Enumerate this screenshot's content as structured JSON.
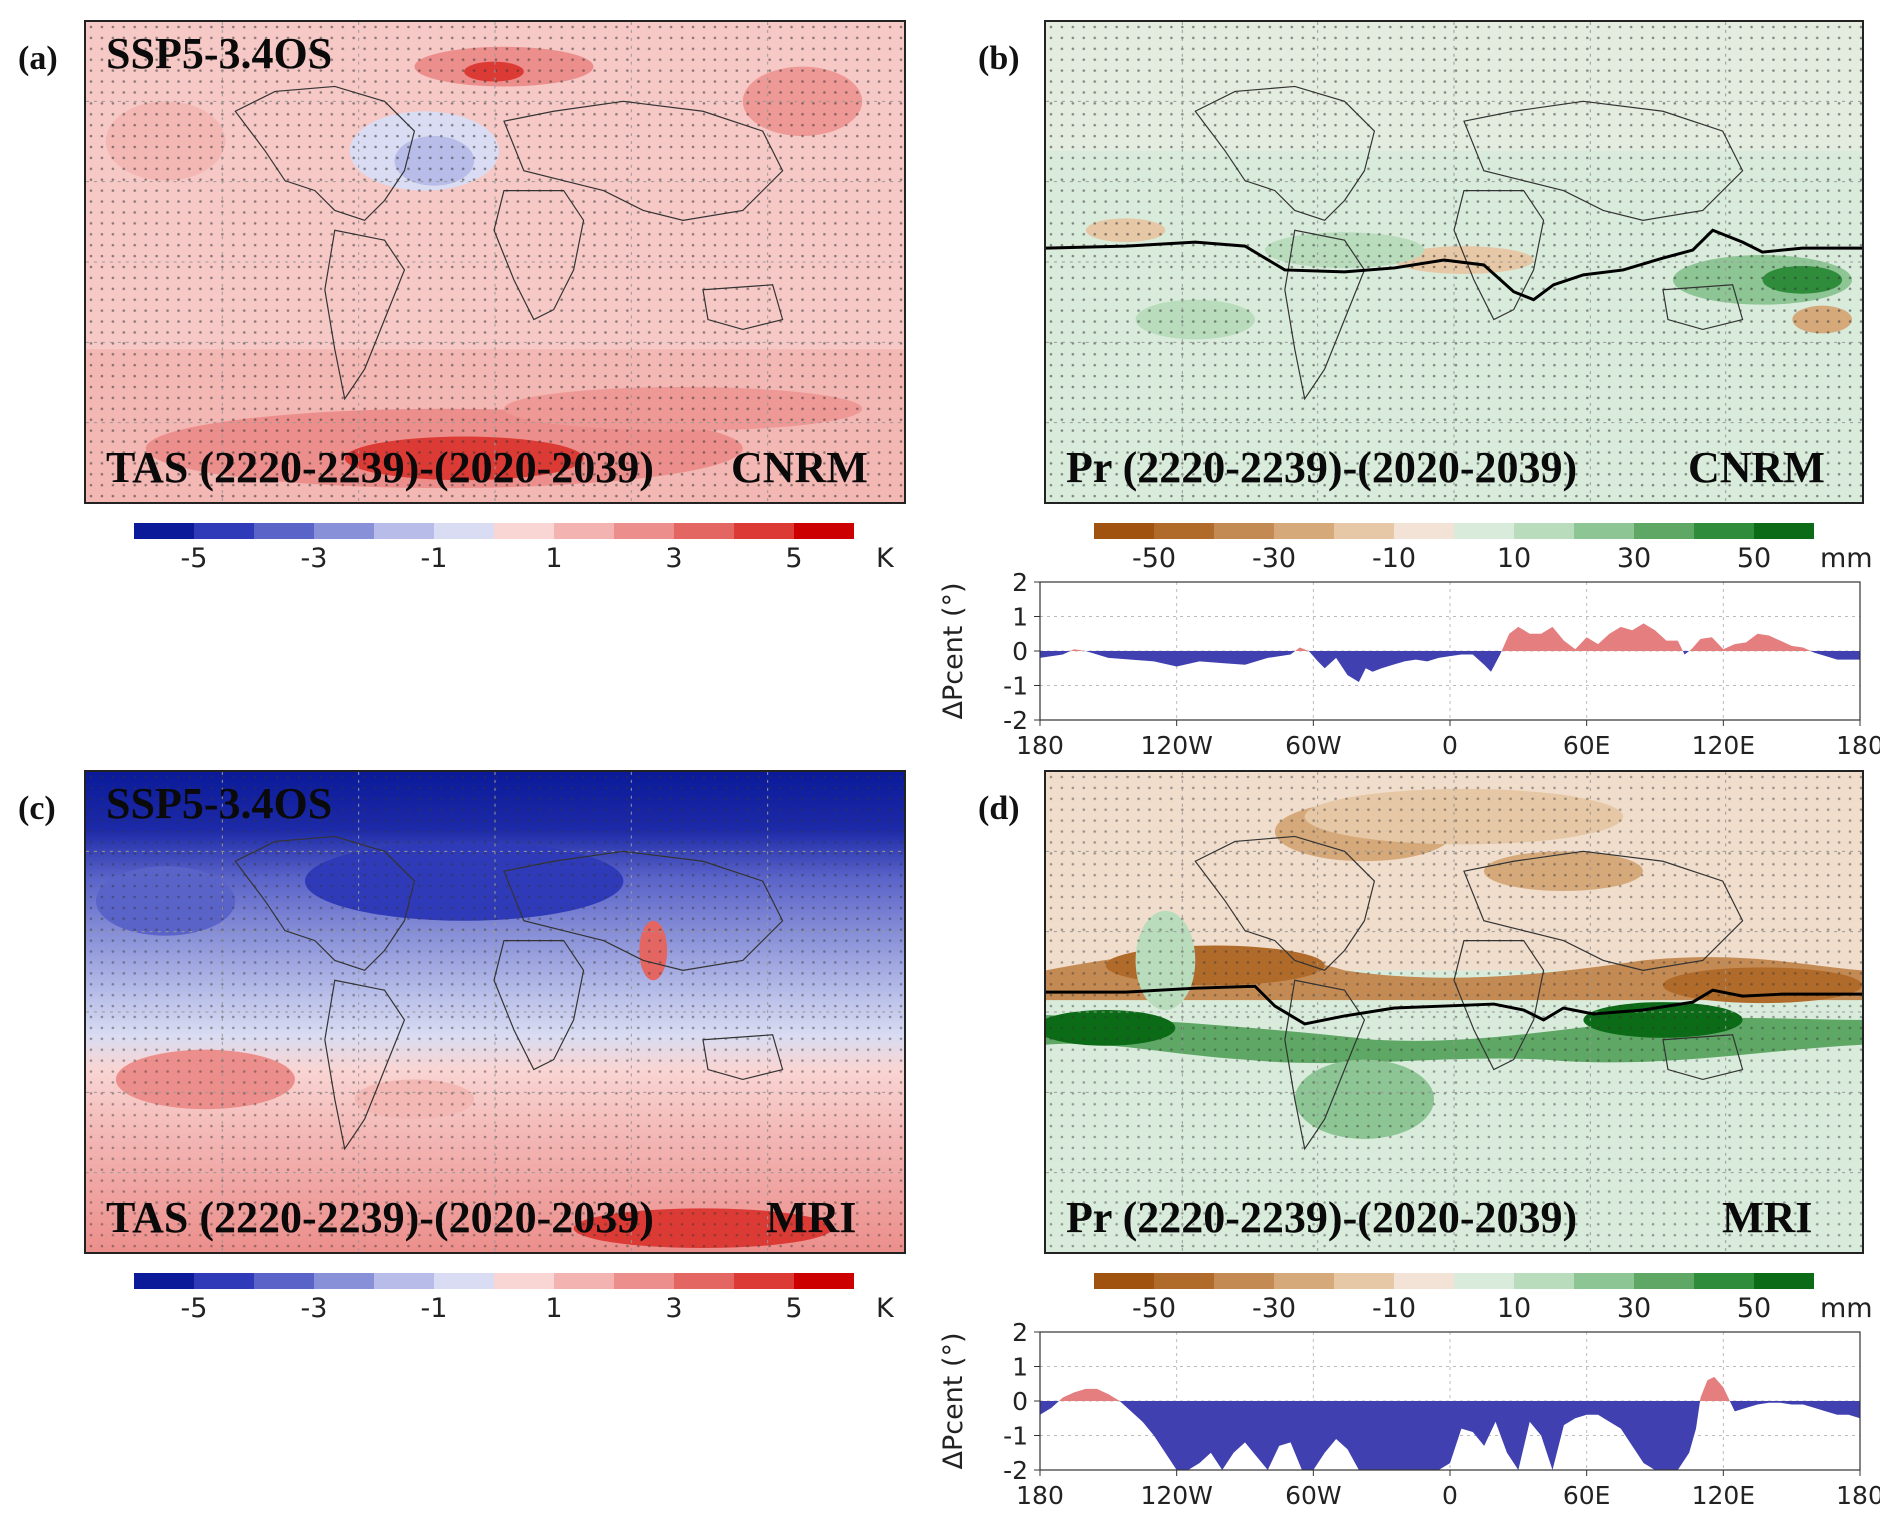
{
  "panels": {
    "a": {
      "letter": "(a)",
      "scenario": "SSP5-3.4OS",
      "label_left": "TAS (2220-2239)-(2020-2039)",
      "label_right": "CNRM"
    },
    "b": {
      "letter": "(b)",
      "label_left": "Pr (2220-2239)-(2020-2039)",
      "label_right": "CNRM"
    },
    "c": {
      "letter": "(c)",
      "scenario": "SSP5-3.4OS",
      "label_left": "TAS (2220-2239)-(2020-2039)",
      "label_right": "MRI"
    },
    "d": {
      "letter": "(d)",
      "label_left": "Pr (2220-2239)-(2020-2039)",
      "label_right": "MRI"
    }
  },
  "colorbars": {
    "tas": {
      "colors": [
        "#0a1a99",
        "#2f3ab8",
        "#5a63c8",
        "#8890d8",
        "#b7bde8",
        "#d9dcf2",
        "#f9d5d3",
        "#f2b3b1",
        "#ec8f8c",
        "#e46662",
        "#dc3a35",
        "#cc0000"
      ],
      "ticks": [
        "-5",
        "-3",
        "-1",
        "1",
        "3",
        "5"
      ],
      "unit": "K"
    },
    "pr": {
      "colors": [
        "#a0520f",
        "#b06b2b",
        "#c48a53",
        "#d6a97b",
        "#e6c8a6",
        "#f2e3d6",
        "#d9ecdc",
        "#b8dcbc",
        "#8dc594",
        "#5ea765",
        "#2f8c3a",
        "#0b6b16"
      ],
      "ticks": [
        "-50",
        "-30",
        "-10",
        "10",
        "30",
        "50"
      ],
      "unit": "mm"
    }
  },
  "chart_data": [
    {
      "type": "area",
      "panel": "b-lower",
      "ylabel": "ΔPcent (°)",
      "ylim": [
        -2,
        2
      ],
      "yticks": [
        "2",
        "1",
        "0",
        "-1",
        "-2"
      ],
      "xlim": [
        -180,
        180
      ],
      "xticks": [
        "180",
        "120W",
        "60W",
        "0",
        "60E",
        "120E",
        "180"
      ],
      "positive_color": "#e57f7f",
      "negative_color": "#4040b0",
      "x": [
        -180,
        -170,
        -165,
        -160,
        -150,
        -140,
        -130,
        -120,
        -110,
        -100,
        -90,
        -80,
        -70,
        -66,
        -62,
        -58,
        -55,
        -50,
        -45,
        -40,
        -37,
        -34,
        -30,
        -25,
        -20,
        -15,
        -10,
        -5,
        0,
        5,
        10,
        15,
        18,
        22,
        26,
        30,
        35,
        40,
        45,
        50,
        55,
        60,
        65,
        70,
        75,
        80,
        85,
        90,
        95,
        100,
        103,
        106,
        110,
        115,
        120,
        125,
        130,
        135,
        140,
        145,
        150,
        155,
        160,
        165,
        170,
        175,
        180
      ],
      "y": [
        -0.2,
        -0.1,
        0.05,
        0.0,
        -0.2,
        -0.25,
        -0.3,
        -0.45,
        -0.3,
        -0.35,
        -0.4,
        -0.2,
        -0.1,
        0.1,
        0.0,
        -0.3,
        -0.5,
        -0.2,
        -0.7,
        -0.9,
        -0.5,
        -0.6,
        -0.5,
        -0.4,
        -0.3,
        -0.25,
        -0.3,
        -0.2,
        -0.15,
        -0.1,
        -0.1,
        -0.4,
        -0.6,
        -0.1,
        0.5,
        0.7,
        0.5,
        0.5,
        0.7,
        0.3,
        0.05,
        0.4,
        0.2,
        0.5,
        0.7,
        0.6,
        0.8,
        0.6,
        0.3,
        0.3,
        -0.1,
        0.05,
        0.35,
        0.4,
        0.05,
        0.2,
        0.25,
        0.5,
        0.45,
        0.3,
        0.15,
        0.1,
        -0.05,
        -0.15,
        -0.25,
        -0.25,
        -0.25
      ]
    },
    {
      "type": "area",
      "panel": "d-lower",
      "ylabel": "ΔPcent (°)",
      "ylim": [
        -2,
        2
      ],
      "yticks": [
        "2",
        "1",
        "0",
        "-1",
        "-2"
      ],
      "xlim": [
        -180,
        180
      ],
      "xticks": [
        "180",
        "120W",
        "60W",
        "0",
        "60E",
        "120E",
        "180"
      ],
      "positive_color": "#e57f7f",
      "negative_color": "#4040b0",
      "x": [
        -180,
        -175,
        -170,
        -165,
        -160,
        -155,
        -150,
        -145,
        -140,
        -135,
        -130,
        -125,
        -120,
        -115,
        -110,
        -105,
        -100,
        -95,
        -90,
        -85,
        -80,
        -75,
        -70,
        -65,
        -60,
        -55,
        -50,
        -45,
        -40,
        -35,
        -30,
        -25,
        -20,
        -15,
        -10,
        -5,
        0,
        5,
        10,
        15,
        20,
        25,
        30,
        35,
        40,
        45,
        50,
        55,
        60,
        65,
        70,
        75,
        80,
        85,
        90,
        95,
        100,
        105,
        108,
        110,
        113,
        116,
        120,
        125,
        130,
        135,
        140,
        145,
        150,
        155,
        160,
        165,
        170,
        175,
        180
      ],
      "y": [
        -0.4,
        -0.2,
        0.1,
        0.25,
        0.35,
        0.35,
        0.2,
        0.0,
        -0.3,
        -0.6,
        -1.0,
        -1.5,
        -2.0,
        -2.0,
        -1.8,
        -1.5,
        -2.0,
        -1.5,
        -1.2,
        -1.6,
        -2.0,
        -1.3,
        -1.2,
        -2.0,
        -2.0,
        -1.5,
        -1.1,
        -1.4,
        -2.0,
        -2.0,
        -2.0,
        -2.0,
        -2.0,
        -2.0,
        -2.0,
        -2.0,
        -1.8,
        -0.8,
        -0.9,
        -1.3,
        -0.6,
        -1.5,
        -2.0,
        -0.6,
        -1.0,
        -2.0,
        -0.7,
        -0.5,
        -0.4,
        -0.4,
        -0.6,
        -0.8,
        -1.3,
        -1.8,
        -2.0,
        -2.0,
        -2.0,
        -1.5,
        -0.8,
        0.1,
        0.6,
        0.7,
        0.4,
        -0.3,
        -0.2,
        -0.1,
        -0.05,
        -0.05,
        -0.1,
        -0.1,
        -0.2,
        -0.3,
        -0.4,
        -0.4,
        -0.5
      ]
    }
  ]
}
